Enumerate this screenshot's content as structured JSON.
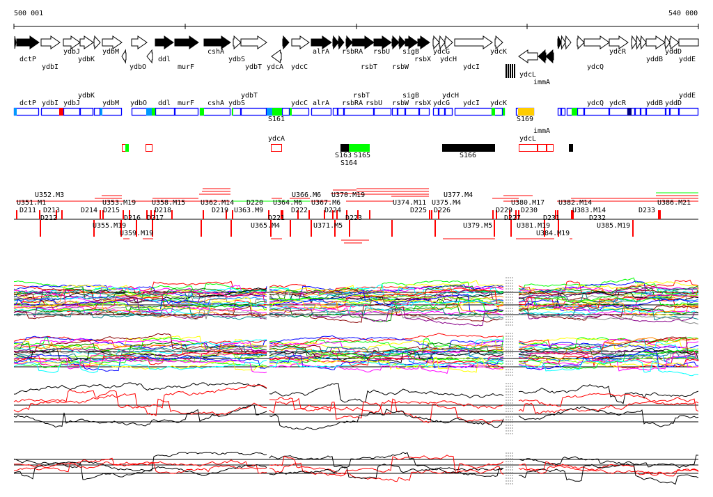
{
  "ruler": {
    "start_label": "500 001",
    "end_label": "540 000"
  },
  "genes": [
    "dctP",
    "ydbI",
    "ydbJ",
    "ydbK",
    "ydbM",
    "ydbO",
    "ddl",
    "murF",
    "cshA",
    "ydbS",
    "ydbT",
    "ydcA",
    "ydcC",
    "alrA",
    "rsbRA",
    "rsbT",
    "rsbU",
    "rsbW",
    "sigB",
    "rsbX",
    "ydcG",
    "ydcH",
    "ydcI",
    "ydcK",
    "ydcL",
    "immA",
    "ydcQ",
    "ydcR",
    "yddB",
    "yddD",
    "yddE"
  ],
  "segment_labels": [
    "S161",
    "S169"
  ],
  "small_track_labels": [
    "ydcA",
    "S163",
    "S164",
    "S165",
    "S166",
    "ydcL",
    "immA"
  ],
  "transcript_labels": [
    "U351.M1",
    "U352.M3",
    "D211",
    "D212",
    "D213",
    "D214",
    "U353.M19",
    "D215",
    "D216",
    "U355.M19",
    "U359.M19",
    "D217",
    "U358.M15",
    "D218",
    "U362.M14",
    "D219",
    "U363.M9",
    "D220",
    "U364.M6",
    "D221",
    "U365.M4",
    "U366.M6",
    "U367.M6",
    "D222",
    "D224",
    "D223",
    "U371.M5",
    "U370.M19",
    "U374.M11",
    "D225",
    "U375.M4",
    "D226",
    "U377.M4",
    "U379.M5",
    "U380.M17",
    "D229",
    "D227",
    "D230",
    "U381.M19",
    "U384.M19",
    "D231",
    "U382.M14",
    "U383.M14",
    "D232",
    "U385.M19",
    "D233",
    "U386.M21"
  ],
  "colors": {
    "filled_gene": "#000000",
    "segment_border": "#0000ff",
    "green": "#00ff00",
    "red": "#ff0000",
    "lightblue": "#0099ff",
    "orange": "#ffcc00",
    "navy": "#000080"
  }
}
